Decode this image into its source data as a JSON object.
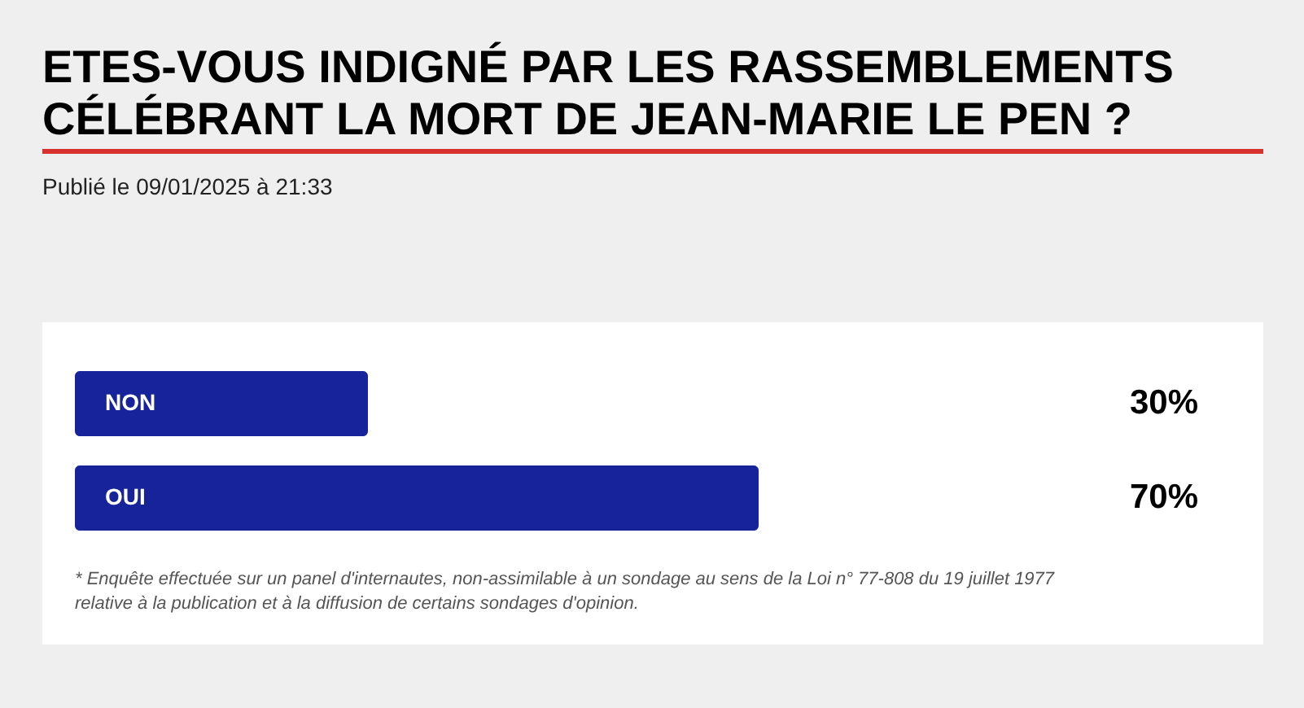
{
  "chart_data": {
    "type": "bar",
    "orientation": "horizontal",
    "title": "ETES-VOUS INDIGNÉ PAR LES RASSEMBLEMENTS CÉLÉBRANT LA MORT DE JEAN-MARIE LE PEN ?",
    "subtitle": "Publié le 09/01/2025 à 21:33",
    "categories": [
      "NON",
      "OUI"
    ],
    "values": [
      30,
      70
    ],
    "value_labels": [
      "30%",
      "70%"
    ],
    "color": "#17239a",
    "tick_labels": "y",
    "annotations": [
      "* Enquête effectuée sur un panel d'internautes, non-assimilable à un sondage au sens de la Loi n° 77-808 du 19 juillet 1977 relative à la publication et à la diffusion de certains sondages d'opinion."
    ]
  }
}
